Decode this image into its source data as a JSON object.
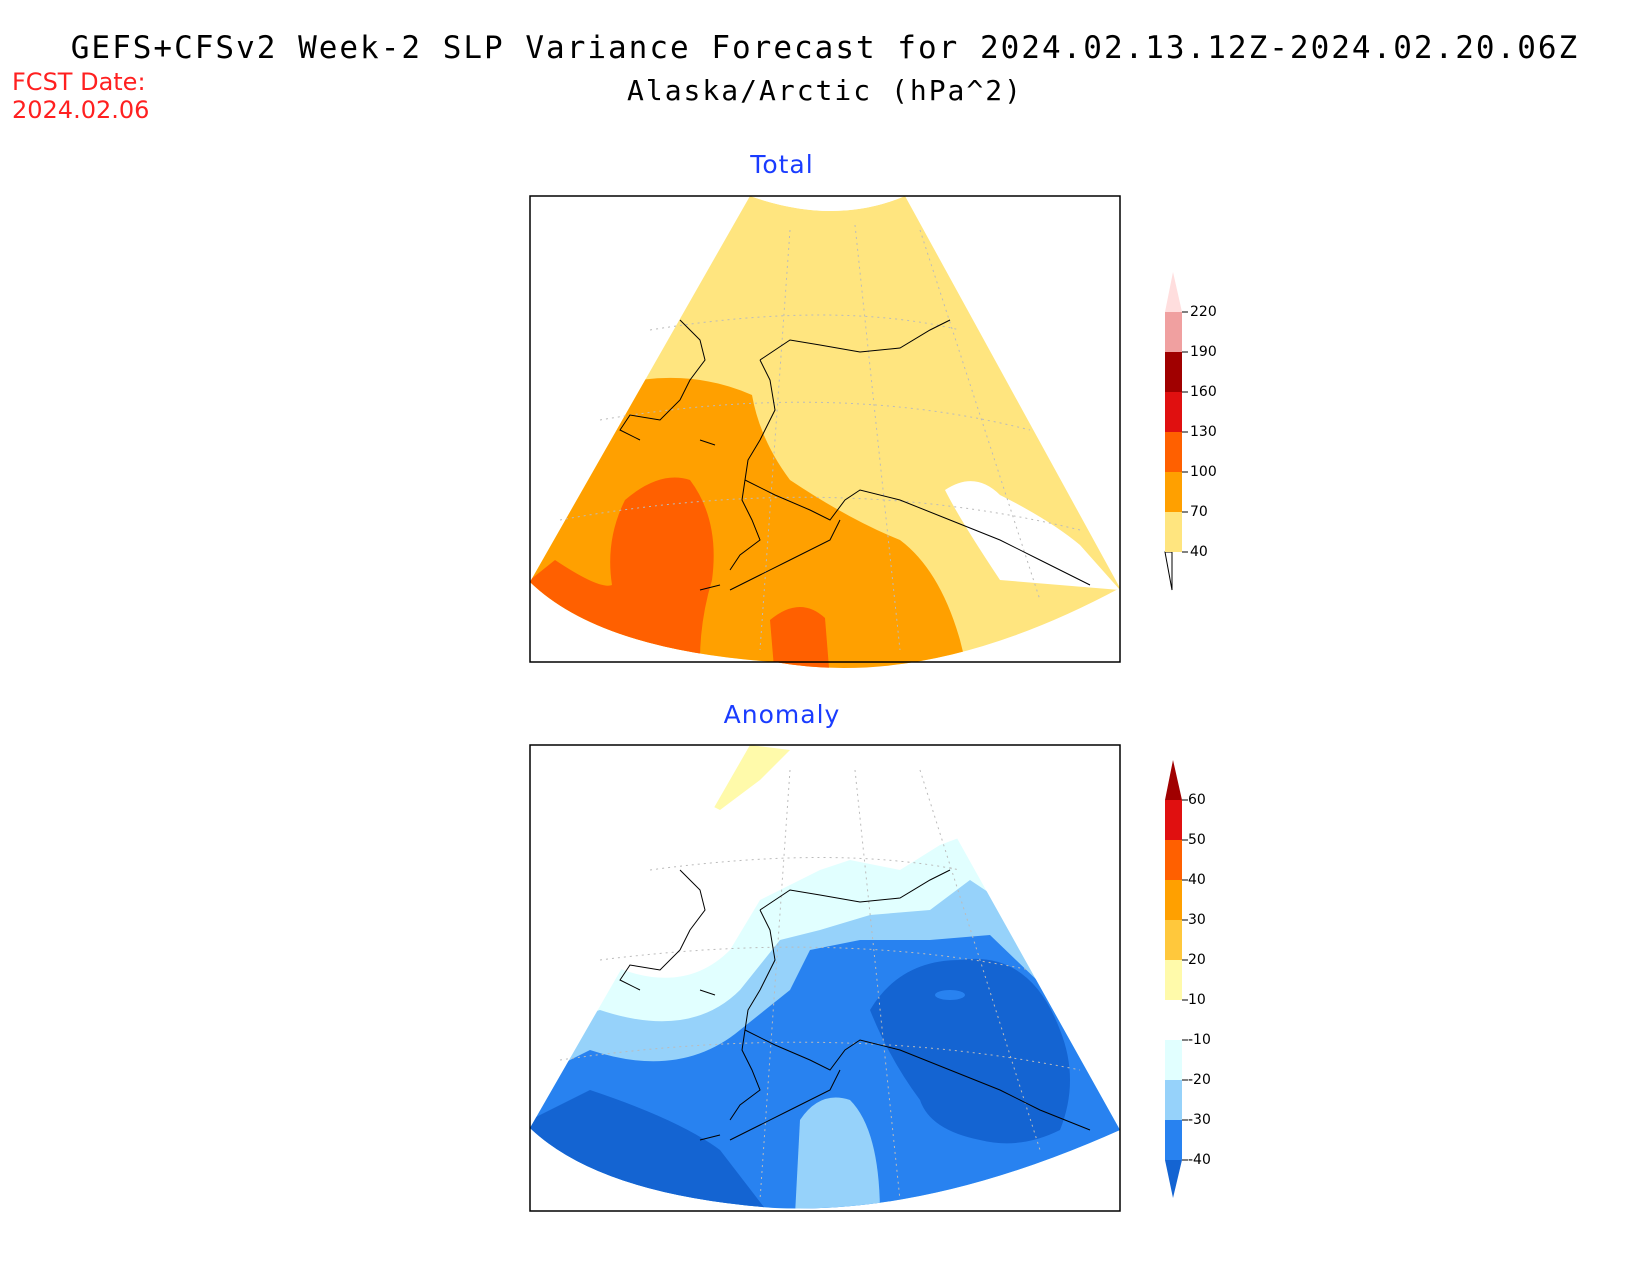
{
  "header": {
    "title": "GEFS+CFSv2 Week-2 SLP Variance Forecast for 2024.02.13.12Z-2024.02.20.06Z",
    "subtitle": "Alaska/Arctic (hPa^2)",
    "fcst_label": "FCST Date:",
    "fcst_date": "2024.02.06"
  },
  "panels": [
    {
      "title": "Total",
      "colorbar": {
        "levels": [
          "40",
          "70",
          "100",
          "130",
          "160",
          "190",
          "220"
        ],
        "colors": [
          "#ffe57f",
          "#ffa000",
          "#ff6000",
          "#e01010",
          "#a00000",
          "#f0a0a0",
          "#ffdede"
        ]
      }
    },
    {
      "title": "Anomaly",
      "colorbar": {
        "levels": [
          "-40",
          "-30",
          "-20",
          "-10",
          "10",
          "20",
          "30",
          "40",
          "50",
          "60"
        ],
        "colors": [
          "#1464d2",
          "#2882f0",
          "#96d2fa",
          "#e1ffff",
          "#ffffff",
          "#fffaaa",
          "#ffc83c",
          "#ffa000",
          "#ff6000",
          "#e01010",
          "#a00000"
        ]
      }
    }
  ],
  "colors": {
    "title_text": "#000000",
    "fcst_text": "#ff2020",
    "panel_title": "#1a3cff"
  }
}
